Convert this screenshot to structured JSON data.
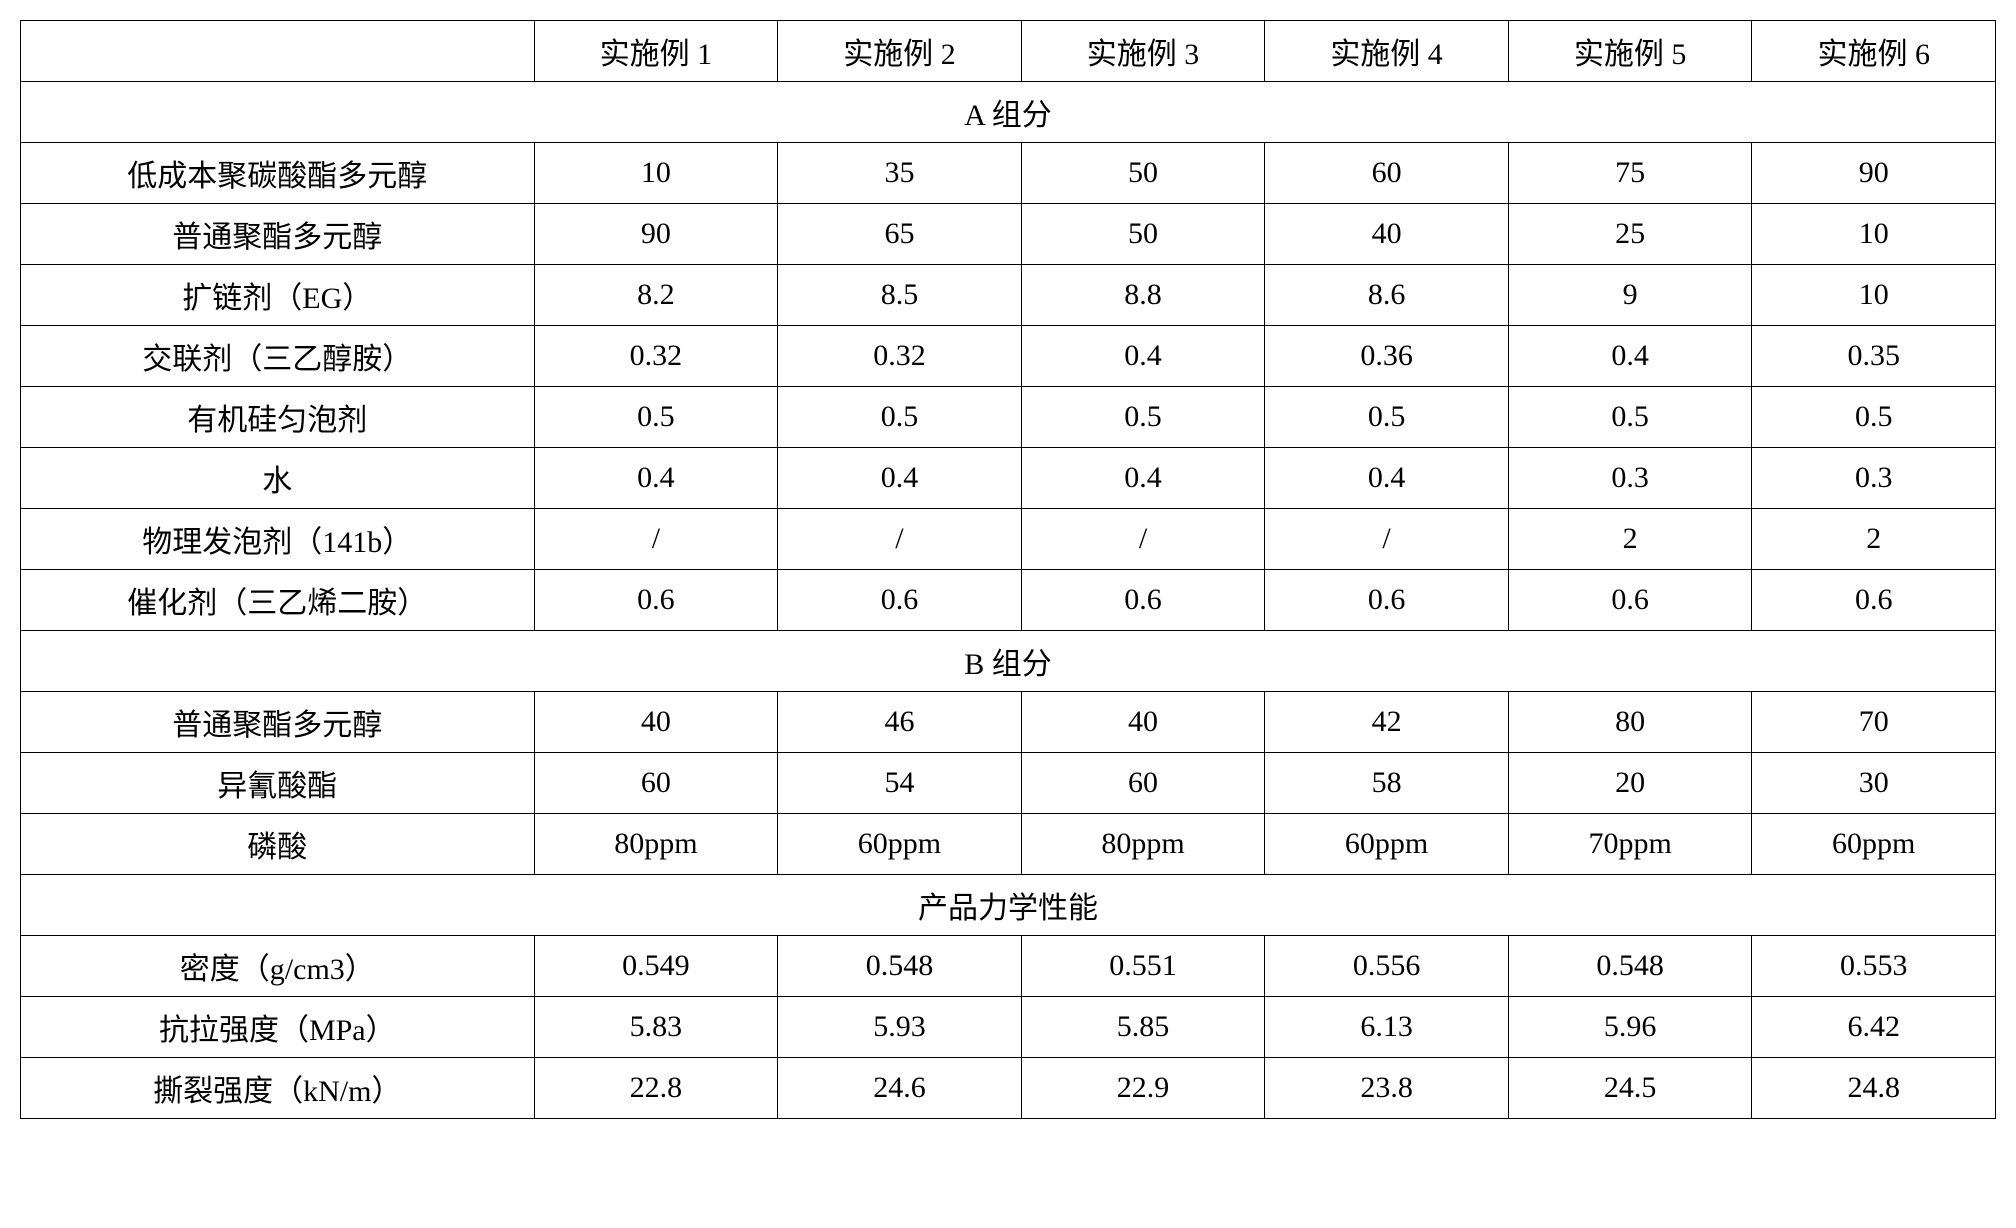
{
  "table": {
    "border_color": "#000000",
    "background_color": "#ffffff",
    "text_color": "#000000",
    "font_size": 30,
    "font_family": "SimSun",
    "headers": {
      "blank": "",
      "col1": "实施例 1",
      "col2": "实施例 2",
      "col3": "实施例 3",
      "col4": "实施例 4",
      "col5": "实施例 5",
      "col6": "实施例 6"
    },
    "section_a": {
      "title": "A 组分",
      "rows": [
        {
          "label": "低成本聚碳酸酯多元醇",
          "values": [
            "10",
            "35",
            "50",
            "60",
            "75",
            "90"
          ]
        },
        {
          "label": "普通聚酯多元醇",
          "values": [
            "90",
            "65",
            "50",
            "40",
            "25",
            "10"
          ]
        },
        {
          "label": "扩链剂（EG）",
          "values": [
            "8.2",
            "8.5",
            "8.8",
            "8.6",
            "9",
            "10"
          ]
        },
        {
          "label": "交联剂（三乙醇胺）",
          "values": [
            "0.32",
            "0.32",
            "0.4",
            "0.36",
            "0.4",
            "0.35"
          ]
        },
        {
          "label": "有机硅匀泡剂",
          "values": [
            "0.5",
            "0.5",
            "0.5",
            "0.5",
            "0.5",
            "0.5"
          ]
        },
        {
          "label": "水",
          "values": [
            "0.4",
            "0.4",
            "0.4",
            "0.4",
            "0.3",
            "0.3"
          ]
        },
        {
          "label": "物理发泡剂（141b）",
          "values": [
            "/",
            "/",
            "/",
            "/",
            "2",
            "2"
          ]
        },
        {
          "label": "催化剂（三乙烯二胺）",
          "values": [
            "0.6",
            "0.6",
            "0.6",
            "0.6",
            "0.6",
            "0.6"
          ]
        }
      ]
    },
    "section_b": {
      "title": "B 组分",
      "rows": [
        {
          "label": "普通聚酯多元醇",
          "values": [
            "40",
            "46",
            "40",
            "42",
            "80",
            "70"
          ]
        },
        {
          "label": "异氰酸酯",
          "values": [
            "60",
            "54",
            "60",
            "58",
            "20",
            "30"
          ]
        },
        {
          "label": "磷酸",
          "values": [
            "80ppm",
            "60ppm",
            "80ppm",
            "60ppm",
            "70ppm",
            "60ppm"
          ]
        }
      ]
    },
    "section_c": {
      "title": "产品力学性能",
      "rows": [
        {
          "label": "密度（g/cm3）",
          "values": [
            "0.549",
            "0.548",
            "0.551",
            "0.556",
            "0.548",
            "0.553"
          ]
        },
        {
          "label": "抗拉强度（MPa）",
          "values": [
            "5.83",
            "5.93",
            "5.85",
            "6.13",
            "5.96",
            "6.42"
          ]
        },
        {
          "label": "撕裂强度（kN/m）",
          "values": [
            "22.8",
            "24.6",
            "22.9",
            "23.8",
            "24.5",
            "24.8"
          ]
        }
      ]
    }
  }
}
